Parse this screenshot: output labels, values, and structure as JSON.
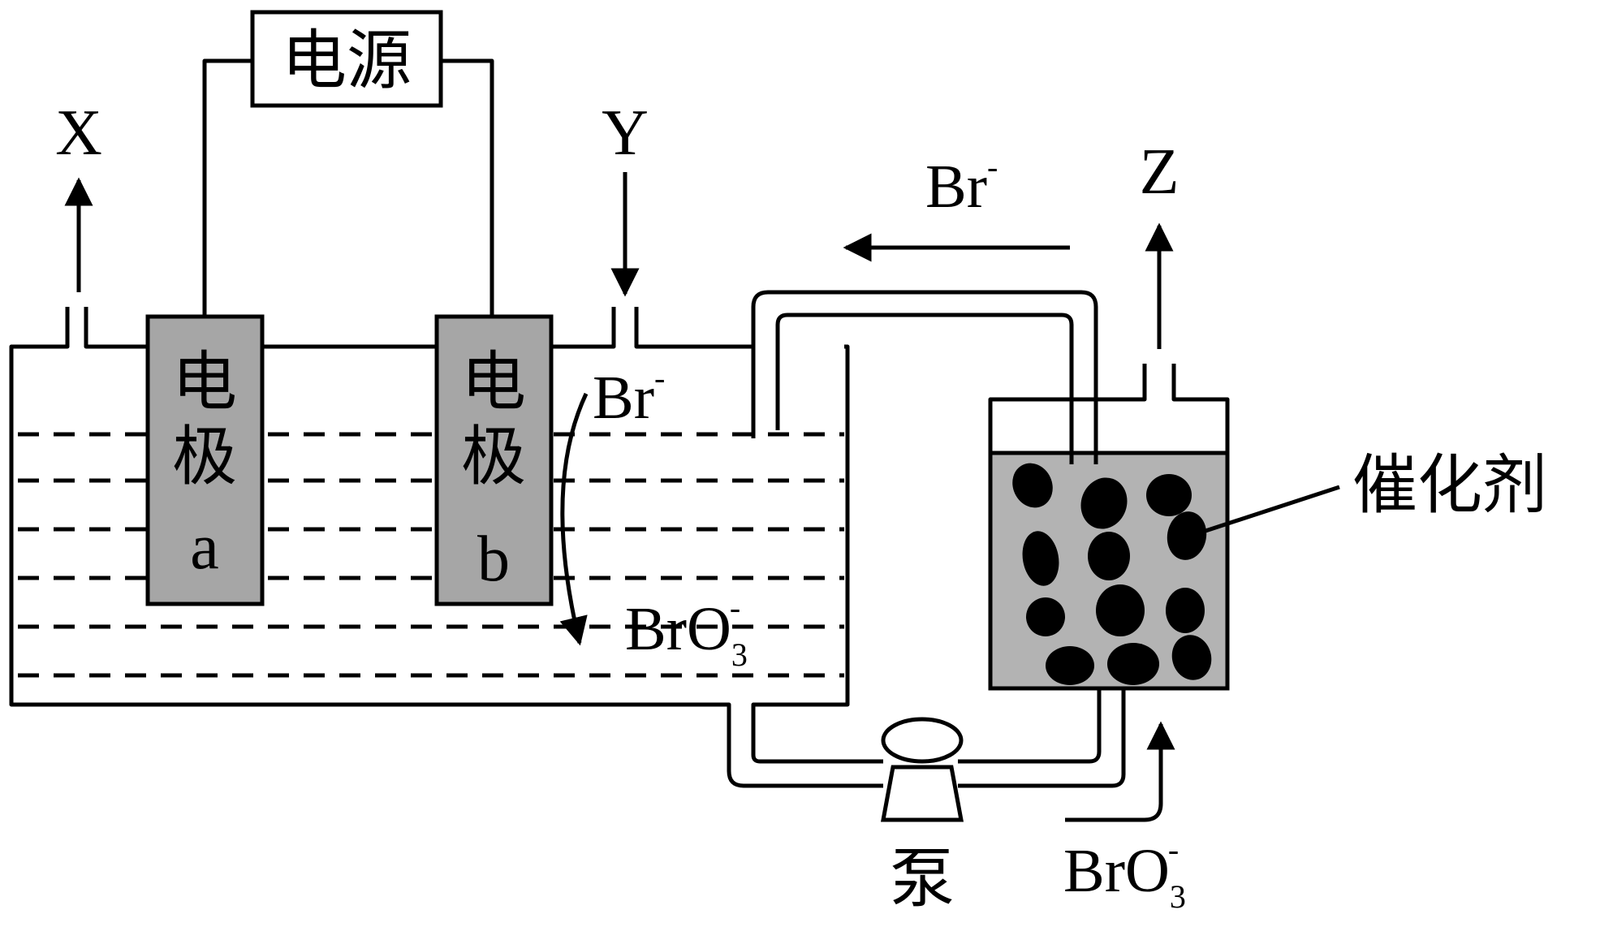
{
  "power_source": {
    "label": "电源"
  },
  "electrode_a": {
    "line1": "电",
    "line2": "极",
    "line3": "a"
  },
  "electrode_b": {
    "line1": "电",
    "line2": "极",
    "line3": "b"
  },
  "gas_x": {
    "label": "X"
  },
  "gas_y": {
    "label": "Y"
  },
  "gas_z": {
    "label": "Z"
  },
  "ion_br_top": {
    "base": "Br",
    "charge": "-"
  },
  "ion_br_cell": {
    "base": "Br",
    "charge": "-"
  },
  "ion_bro3_cell": {
    "base": "BrO",
    "sub": "3",
    "charge": "-"
  },
  "ion_bro3_bottom": {
    "base": "BrO",
    "sub": "3",
    "charge": "-"
  },
  "catalyst": {
    "label": "催化剂"
  },
  "pump": {
    "label": "泵"
  },
  "colors": {
    "electrode_fill": "#a6a6a6",
    "reactor_fill": "#b3b3b3",
    "line": "#000000"
  }
}
